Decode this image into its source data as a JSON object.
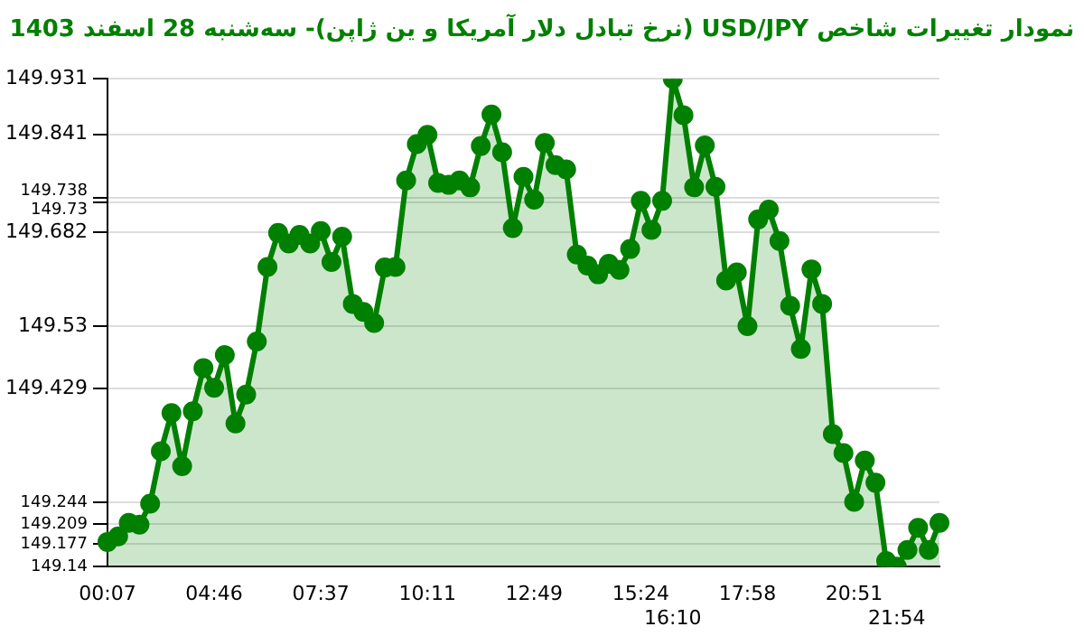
{
  "chart_data": {
    "type": "area",
    "title": "نمودار تغییرات شاخص USD/JPY (نرخ تبادل دلار آمریکا و ین ژاپن)- سه‌شنبه  28 اسفند 1403",
    "categories": [
      "00:07",
      null,
      null,
      null,
      null,
      null,
      null,
      null,
      null,
      null,
      "04:46",
      null,
      null,
      null,
      null,
      null,
      null,
      null,
      null,
      null,
      "07:37",
      null,
      null,
      null,
      null,
      null,
      null,
      null,
      null,
      null,
      "10:11",
      null,
      null,
      null,
      null,
      null,
      null,
      null,
      null,
      null,
      "12:49",
      null,
      null,
      null,
      null,
      null,
      null,
      null,
      null,
      null,
      "15:24",
      null,
      null,
      "16:10",
      null,
      null,
      null,
      null,
      null,
      null,
      "17:58",
      null,
      null,
      null,
      null,
      null,
      null,
      null,
      null,
      null,
      "20:51",
      null,
      null,
      null,
      "21:54",
      null,
      null,
      null,
      null
    ],
    "series": [
      {
        "color": "#008000",
        "values": [
          149.18,
          149.189,
          149.211,
          149.208,
          149.242,
          149.327,
          149.389,
          149.303,
          149.392,
          149.462,
          149.43,
          149.483,
          149.372,
          149.419,
          149.505,
          149.626,
          149.681,
          149.664,
          149.678,
          149.664,
          149.684,
          149.634,
          149.675,
          149.566,
          149.553,
          149.535,
          149.625,
          149.626,
          149.766,
          149.825,
          149.84,
          149.762,
          149.759,
          149.766,
          149.755,
          149.822,
          149.873,
          149.812,
          149.689,
          149.772,
          149.735,
          149.827,
          149.791,
          149.784,
          149.646,
          149.628,
          149.614,
          149.631,
          149.621,
          149.655,
          149.733,
          149.686,
          149.733,
          149.931,
          149.872,
          149.755,
          149.823,
          149.756,
          149.604,
          149.617,
          149.53,
          149.703,
          149.719,
          149.668,
          149.563,
          149.493,
          149.622,
          149.566,
          149.355,
          149.324,
          149.245,
          149.312,
          149.276,
          149.149,
          149.14,
          149.167,
          149.203,
          149.167,
          149.211
        ]
      }
    ],
    "ylim": [
      149.14,
      149.931
    ],
    "yticks": [
      149.14,
      149.177,
      149.209,
      149.244,
      149.429,
      149.53,
      149.682,
      149.73,
      149.738,
      149.841,
      149.931
    ],
    "grid": "y",
    "marker": "circle",
    "legend": false
  }
}
